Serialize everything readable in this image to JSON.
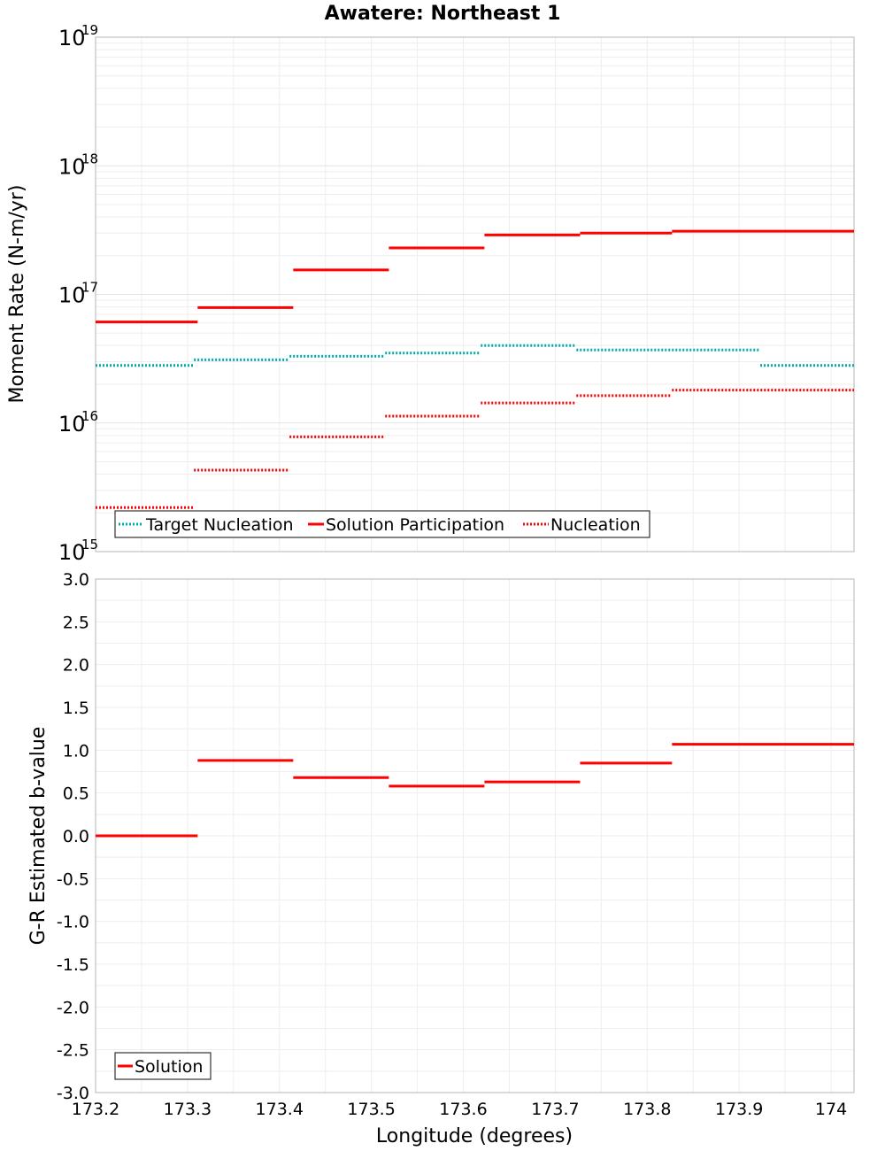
{
  "chart_data": [
    {
      "type": "line",
      "title": "Awatere: Northeast 1",
      "ylabel": "Moment Rate (N-m/yr)",
      "xlabel": "",
      "yscale": "log",
      "ylim": [
        1000000000000000.0,
        1e+19
      ],
      "xlim": [
        173.2,
        174.025
      ],
      "y_ticks": [
        {
          "base": "10",
          "exp": "15"
        },
        {
          "base": "10",
          "exp": "16"
        },
        {
          "base": "10",
          "exp": "17"
        },
        {
          "base": "10",
          "exp": "18"
        },
        {
          "base": "10",
          "exp": "19"
        }
      ],
      "grid": true,
      "legend_position": "bottom-left",
      "series": [
        {
          "name": "Target Nucleation",
          "color": "#00aaaa",
          "style": "dotted",
          "segments": [
            {
              "x0": 173.2,
              "x1": 173.307,
              "y": 2.8e+16
            },
            {
              "x0": 173.307,
              "x1": 173.411,
              "y": 3.1e+16
            },
            {
              "x0": 173.411,
              "x1": 173.515,
              "y": 3.3e+16
            },
            {
              "x0": 173.515,
              "x1": 173.619,
              "y": 3.5e+16
            },
            {
              "x0": 173.619,
              "x1": 173.723,
              "y": 4e+16
            },
            {
              "x0": 173.723,
              "x1": 173.923,
              "y": 3.7e+16
            },
            {
              "x0": 173.923,
              "x1": 174.025,
              "y": 2.8e+16
            }
          ]
        },
        {
          "name": "Solution Participation",
          "color": "#ff0000",
          "style": "solid",
          "segments": [
            {
              "x0": 173.2,
              "x1": 173.311,
              "y": 6.1e+16
            },
            {
              "x0": 173.311,
              "x1": 173.415,
              "y": 7.9e+16
            },
            {
              "x0": 173.415,
              "x1": 173.519,
              "y": 1.55e+17
            },
            {
              "x0": 173.519,
              "x1": 173.623,
              "y": 2.3e+17
            },
            {
              "x0": 173.623,
              "x1": 173.727,
              "y": 2.9e+17
            },
            {
              "x0": 173.727,
              "x1": 173.827,
              "y": 3e+17
            },
            {
              "x0": 173.827,
              "x1": 174.025,
              "y": 3.1e+17
            }
          ]
        },
        {
          "name": "Nucleation",
          "color": "#ff0000",
          "style": "dotted",
          "segments": [
            {
              "x0": 173.2,
              "x1": 173.307,
              "y": 2200000000000000.0
            },
            {
              "x0": 173.307,
              "x1": 173.411,
              "y": 4300000000000000.0
            },
            {
              "x0": 173.411,
              "x1": 173.515,
              "y": 7800000000000000.0
            },
            {
              "x0": 173.515,
              "x1": 173.619,
              "y": 1.13e+16
            },
            {
              "x0": 173.619,
              "x1": 173.723,
              "y": 1.43e+16
            },
            {
              "x0": 173.723,
              "x1": 173.827,
              "y": 1.63e+16
            },
            {
              "x0": 173.827,
              "x1": 174.025,
              "y": 1.8e+16
            }
          ]
        }
      ]
    },
    {
      "type": "line",
      "title": "",
      "ylabel": "G-R Estimated b-value",
      "xlabel": "Longitude (degrees)",
      "ylim": [
        -3.0,
        3.0
      ],
      "xlim": [
        173.2,
        174.025
      ],
      "x_ticks": [
        "173.2",
        "173.3",
        "173.4",
        "173.5",
        "173.6",
        "173.7",
        "173.8",
        "173.9",
        "174"
      ],
      "y_ticks": [
        "3.0",
        "2.5",
        "2.0",
        "1.5",
        "1.0",
        "0.5",
        "0.0",
        "-0.5",
        "-1.0",
        "-1.5",
        "-2.0",
        "-2.5",
        "-3.0"
      ],
      "grid": true,
      "legend_position": "bottom-left",
      "series": [
        {
          "name": "Solution",
          "color": "#ff0000",
          "style": "solid",
          "segments": [
            {
              "x0": 173.2,
              "x1": 173.311,
              "y": 0.0
            },
            {
              "x0": 173.311,
              "x1": 173.415,
              "y": 0.88
            },
            {
              "x0": 173.415,
              "x1": 173.519,
              "y": 0.68
            },
            {
              "x0": 173.519,
              "x1": 173.623,
              "y": 0.58
            },
            {
              "x0": 173.623,
              "x1": 173.727,
              "y": 0.63
            },
            {
              "x0": 173.727,
              "x1": 173.827,
              "y": 0.85
            },
            {
              "x0": 173.827,
              "x1": 174.025,
              "y": 1.07
            }
          ]
        }
      ]
    }
  ]
}
